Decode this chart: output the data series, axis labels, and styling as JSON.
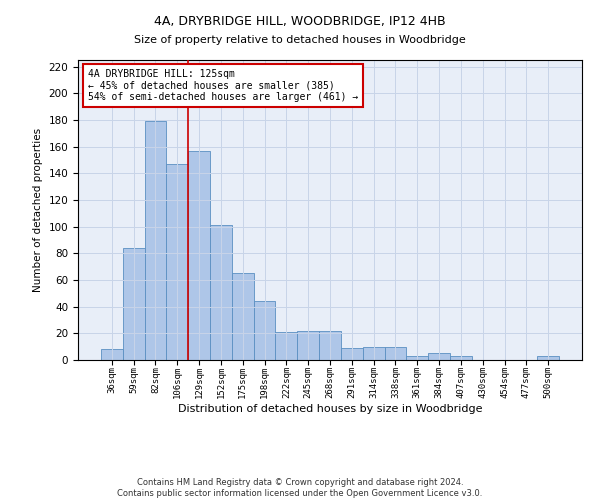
{
  "title1": "4A, DRYBRIDGE HILL, WOODBRIDGE, IP12 4HB",
  "title2": "Size of property relative to detached houses in Woodbridge",
  "xlabel": "Distribution of detached houses by size in Woodbridge",
  "ylabel": "Number of detached properties",
  "categories": [
    "36sqm",
    "59sqm",
    "82sqm",
    "106sqm",
    "129sqm",
    "152sqm",
    "175sqm",
    "198sqm",
    "222sqm",
    "245sqm",
    "268sqm",
    "291sqm",
    "314sqm",
    "338sqm",
    "361sqm",
    "384sqm",
    "407sqm",
    "430sqm",
    "454sqm",
    "477sqm",
    "500sqm"
  ],
  "values": [
    8,
    84,
    179,
    147,
    157,
    101,
    65,
    44,
    21,
    22,
    22,
    9,
    10,
    10,
    3,
    5,
    3,
    0,
    0,
    0,
    3
  ],
  "bar_color": "#aec6e8",
  "bar_edge_color": "#5a8fc2",
  "vline_color": "#cc0000",
  "annotation_text": "4A DRYBRIDGE HILL: 125sqm\n← 45% of detached houses are smaller (385)\n54% of semi-detached houses are larger (461) →",
  "annotation_box_color": "#ffffff",
  "annotation_box_edge": "#cc0000",
  "footer": "Contains HM Land Registry data © Crown copyright and database right 2024.\nContains public sector information licensed under the Open Government Licence v3.0.",
  "ylim": [
    0,
    225
  ],
  "yticks": [
    0,
    20,
    40,
    60,
    80,
    100,
    120,
    140,
    160,
    180,
    200,
    220
  ],
  "bg_color": "#ffffff",
  "grid_color": "#c8d4e8",
  "ax_bg_color": "#e8eef8"
}
